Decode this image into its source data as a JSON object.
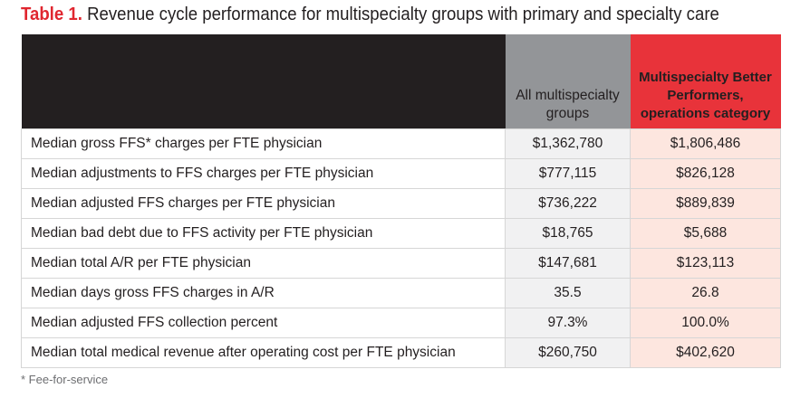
{
  "title": {
    "number": "Table 1.",
    "text": "Revenue cycle performance for multispecialty groups with primary and specialty care"
  },
  "columns": [
    "",
    "All multispecialty groups",
    "Multispecialty Better Performers, operations category"
  ],
  "colors": {
    "header_dark": "#231f20",
    "header_gray": "#939598",
    "header_red": "#e8333a",
    "title_red": "#e0262f",
    "col2_bg": "#f1f1f2",
    "col3_bg": "#fde6df"
  },
  "rows": [
    {
      "label": "Median gross FFS* charges per FTE physician",
      "all": "$1,362,780",
      "better": "$1,806,486"
    },
    {
      "label": "Median adjustments to FFS charges per FTE physician",
      "all": "$777,115",
      "better": "$826,128"
    },
    {
      "label": "Median adjusted FFS charges per FTE physician",
      "all": "$736,222",
      "better": "$889,839"
    },
    {
      "label": "Median bad debt due to FFS activity per FTE physician",
      "all": "$18,765",
      "better": "$5,688"
    },
    {
      "label": "Median total A/R per FTE physician",
      "all": "$147,681",
      "better": "$123,113"
    },
    {
      "label": "Median days gross FFS charges in A/R",
      "all": "35.5",
      "better": "26.8"
    },
    {
      "label": "Median adjusted FFS collection percent",
      "all": "97.3%",
      "better": "100.0%"
    },
    {
      "label": "Median total medical revenue after operating cost per FTE physician",
      "all": "$260,750",
      "better": "$402,620"
    }
  ],
  "footnote": "* Fee-for-service"
}
